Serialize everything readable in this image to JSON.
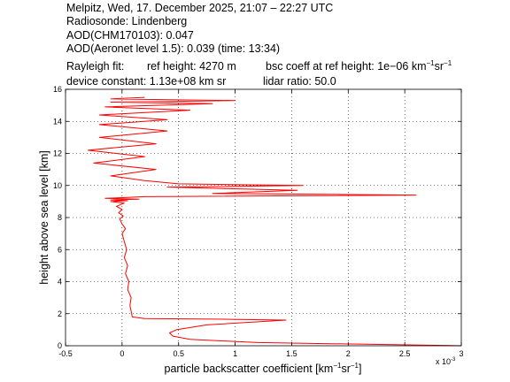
{
  "header": {
    "line1": "Melpitz, Wed, 17. December 2025, 21:07 – 22:27 UTC",
    "line2": "Radiosonde: Lindenberg",
    "line3": "AOD(CHM170103): 0.047",
    "line4": "AOD(Aeronet level 1.5): 0.039   (time: 13:34)",
    "rayleigh_prefix": "Rayleigh fit:",
    "ref_height": "ref height: 4270 m",
    "bsc_coeff_prefix": "bsc coeff at ref height: 1e−06 km",
    "bsc_unit_exp1": "−1",
    "bsc_unit_sr": "sr",
    "bsc_unit_exp2": "−1",
    "device_constant": "device constant: 1.13e+08 km sr",
    "lidar_ratio": "lidar ratio: 50.0"
  },
  "chart_data": {
    "type": "line",
    "xlabel_prefix": "particle backscatter coefficient [km",
    "xlabel_exp1": "−1",
    "xlabel_sr": "sr",
    "xlabel_exp2": "−1",
    "xlabel_suffix": "]",
    "ylabel": "height above sea level [km]",
    "x_multiplier_label": "x 10",
    "x_multiplier_exp": "-3",
    "xlim": [
      -0.5,
      3
    ],
    "ylim": [
      0,
      16
    ],
    "xticks": [
      "-0.5",
      "0",
      "0.5",
      "1",
      "1.5",
      "2",
      "2.5",
      "3"
    ],
    "xtick_values": [
      -0.5,
      0,
      0.5,
      1,
      1.5,
      2,
      2.5,
      3
    ],
    "yticks": [
      "0",
      "2",
      "4",
      "6",
      "8",
      "10",
      "12",
      "14",
      "16"
    ],
    "ytick_values": [
      0,
      2,
      4,
      6,
      8,
      10,
      12,
      14,
      16
    ],
    "grid": true,
    "series": [
      {
        "color": "#ff0000",
        "x": [
          3.0,
          1.2,
          0.6,
          0.45,
          0.42,
          0.48,
          0.75,
          1.45,
          0.95,
          0.2,
          0.09,
          0.07,
          0.08,
          0.05,
          0.06,
          0.03,
          0.05,
          0.02,
          0.04,
          0.02,
          0.0,
          0.03,
          0.0,
          -0.02,
          0.01,
          -0.03,
          0.0,
          -0.05,
          0.02,
          -0.1,
          0.05,
          -0.1,
          0.15,
          -0.15,
          0.2,
          2.6,
          0.8,
          1.55,
          0.4,
          1.6,
          0.5,
          0.2,
          -0.1,
          0.3,
          -0.25,
          0.2,
          -0.3,
          0.3,
          -0.2,
          0.4,
          -0.2,
          0.4,
          -0.2,
          0.6,
          -0.15,
          0.8,
          -0.1,
          1.0,
          -0.1,
          0.2
        ],
        "y": [
          0.0,
          0.2,
          0.4,
          0.6,
          0.8,
          1.0,
          1.3,
          1.6,
          1.65,
          1.7,
          1.8,
          2.5,
          3.0,
          3.5,
          4.0,
          4.5,
          5.0,
          5.5,
          6.0,
          6.5,
          7.0,
          7.3,
          7.6,
          7.9,
          8.1,
          8.3,
          8.5,
          8.7,
          8.9,
          9.0,
          9.05,
          9.1,
          9.15,
          9.2,
          9.3,
          9.4,
          9.5,
          9.7,
          9.9,
          10.0,
          10.1,
          10.3,
          10.6,
          11.0,
          11.4,
          11.8,
          12.2,
          12.6,
          13.0,
          13.4,
          13.8,
          14.1,
          14.4,
          14.7,
          14.9,
          15.1,
          15.2,
          15.3,
          15.4,
          15.5
        ]
      }
    ]
  }
}
